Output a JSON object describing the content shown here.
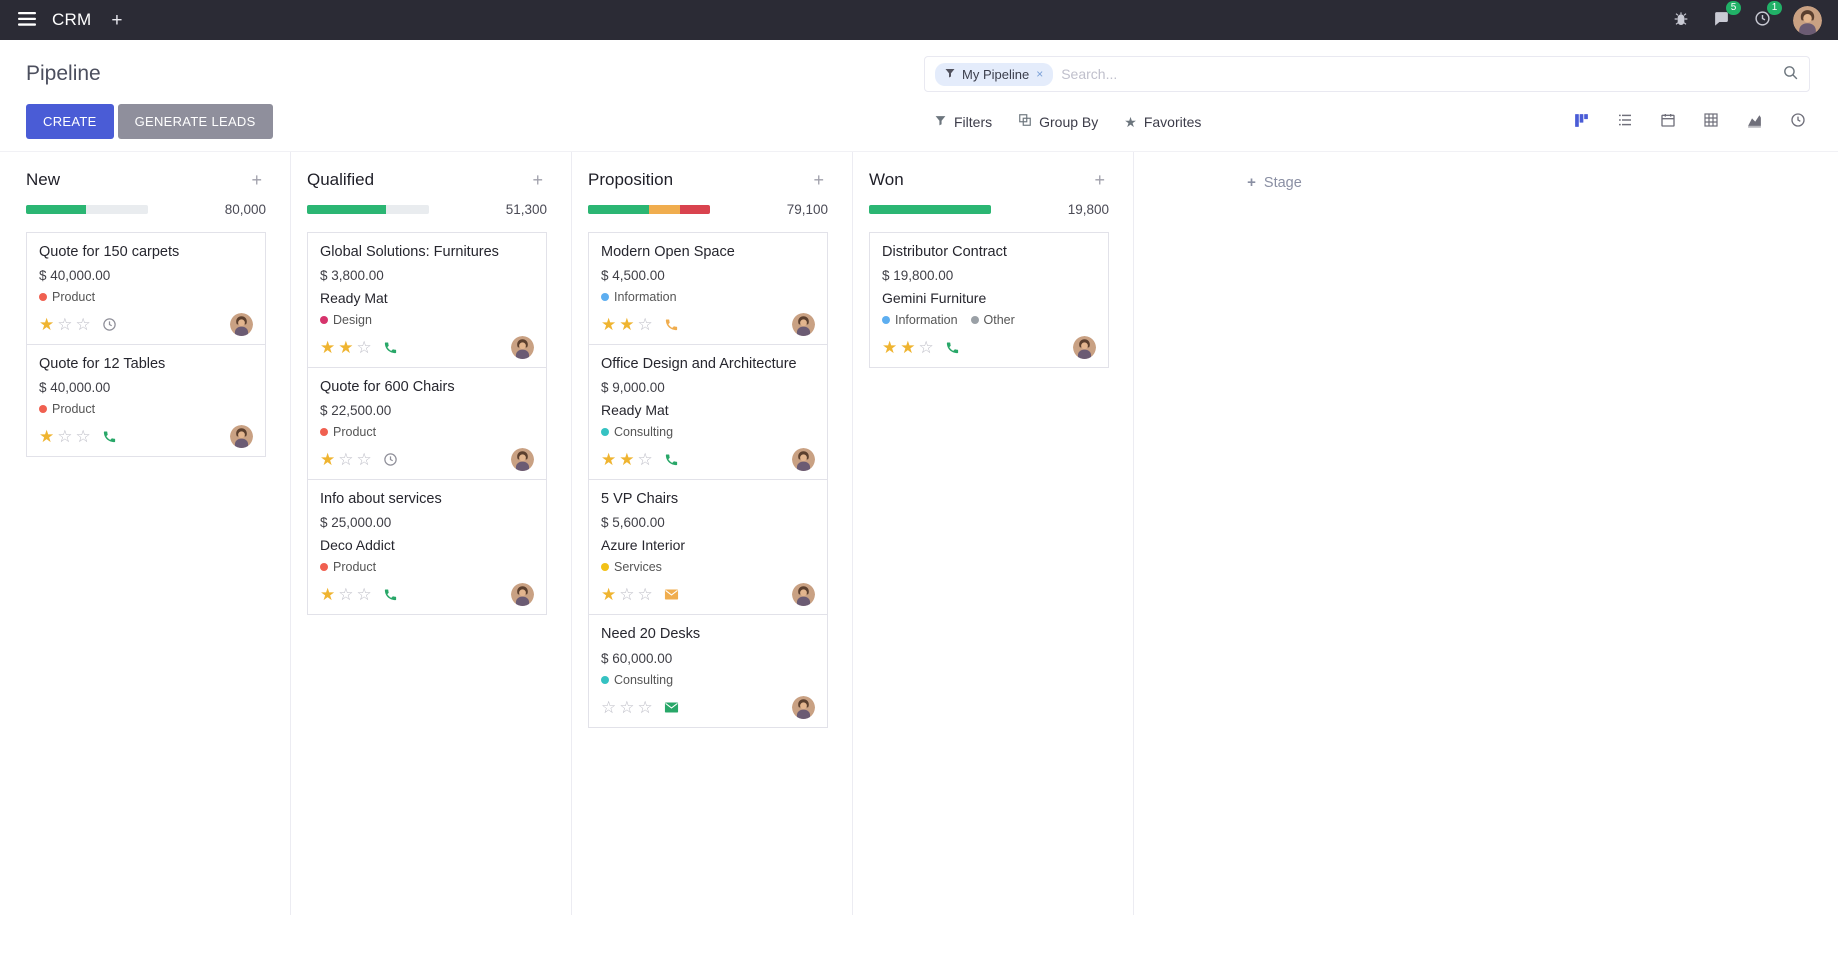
{
  "navbar": {
    "app_name": "CRM",
    "messages_badge": "5",
    "activities_badge": "1"
  },
  "control_panel": {
    "title": "Pipeline",
    "buttons": {
      "create": "CREATE",
      "generate_leads": "GENERATE LEADS"
    },
    "search": {
      "facet_label": "My Pipeline",
      "remove_facet": "×",
      "placeholder": "Search..."
    },
    "filter_buttons": {
      "filters": "Filters",
      "group_by": "Group By",
      "favorites": "Favorites"
    }
  },
  "colors": {
    "accent": "#4a5cd6",
    "success": "#2bb673",
    "warning": "#f0ad4e",
    "danger": "#d9434e",
    "star_gold": "#efb430",
    "badge_green": "#21b167"
  },
  "icons": {
    "activity_clock": "clock-face",
    "activity_phone": "phone-receiver",
    "activity_envelope": "mail-envelope"
  },
  "kanban": {
    "add_stage_label": "Stage",
    "columns": [
      {
        "name": "New",
        "total": "80,000",
        "progress": [
          {
            "color": "#2bb673",
            "pct": 49
          }
        ],
        "cards": [
          {
            "title": "Quote for 150 carpets",
            "amount": "$ 40,000.00",
            "company": "",
            "tags": [
              {
                "label": "Product",
                "color": "#f06050"
              }
            ],
            "stars": 1,
            "activity": {
              "icon": "clock",
              "color": "#8f8f99"
            }
          },
          {
            "title": "Quote for 12 Tables",
            "amount": "$ 40,000.00",
            "company": "",
            "tags": [
              {
                "label": "Product",
                "color": "#f06050"
              }
            ],
            "stars": 1,
            "activity": {
              "icon": "phone",
              "color": "#28a768"
            }
          }
        ]
      },
      {
        "name": "Qualified",
        "total": "51,300",
        "progress": [
          {
            "color": "#2bb673",
            "pct": 65
          }
        ],
        "cards": [
          {
            "title": "Global Solutions: Furnitures",
            "amount": "$ 3,800.00",
            "company": "Ready Mat",
            "tags": [
              {
                "label": "Design",
                "color": "#d6336c"
              }
            ],
            "stars": 2,
            "activity": {
              "icon": "phone",
              "color": "#28a768"
            }
          },
          {
            "title": "Quote for 600 Chairs",
            "amount": "$ 22,500.00",
            "company": "",
            "tags": [
              {
                "label": "Product",
                "color": "#f06050"
              }
            ],
            "stars": 1,
            "activity": {
              "icon": "clock",
              "color": "#8f8f99"
            }
          },
          {
            "title": "Info about services",
            "amount": "$ 25,000.00",
            "company": "Deco Addict",
            "tags": [
              {
                "label": "Product",
                "color": "#f06050"
              }
            ],
            "stars": 1,
            "activity": {
              "icon": "phone",
              "color": "#28a768"
            }
          }
        ]
      },
      {
        "name": "Proposition",
        "total": "79,100",
        "progress": [
          {
            "color": "#2bb673",
            "pct": 50
          },
          {
            "color": "#f0ad4e",
            "pct": 25
          },
          {
            "color": "#d9434e",
            "pct": 25
          }
        ],
        "cards": [
          {
            "title": "Modern Open Space",
            "amount": "$ 4,500.00",
            "company": "",
            "tags": [
              {
                "label": "Information",
                "color": "#5daef0"
              }
            ],
            "stars": 2,
            "activity": {
              "icon": "phone",
              "color": "#f0ad4e"
            }
          },
          {
            "title": "Office Design and Architecture",
            "amount": "$ 9,000.00",
            "company": "Ready Mat",
            "tags": [
              {
                "label": "Consulting",
                "color": "#35c2c2"
              }
            ],
            "stars": 2,
            "activity": {
              "icon": "phone",
              "color": "#28a768"
            }
          },
          {
            "title": "5 VP Chairs",
            "amount": "$ 5,600.00",
            "company": "Azure Interior",
            "tags": [
              {
                "label": "Services",
                "color": "#f2c117"
              }
            ],
            "stars": 1,
            "activity": {
              "icon": "envelope",
              "color": "#f0ad4e"
            }
          },
          {
            "title": "Need 20 Desks",
            "amount": "$ 60,000.00",
            "company": "",
            "tags": [
              {
                "label": "Consulting",
                "color": "#35c2c2"
              }
            ],
            "stars": 0,
            "activity": {
              "icon": "envelope",
              "color": "#28a768"
            }
          }
        ]
      },
      {
        "name": "Won",
        "total": "19,800",
        "progress": [
          {
            "color": "#2bb673",
            "pct": 100
          }
        ],
        "cards": [
          {
            "title": "Distributor Contract",
            "amount": "$ 19,800.00",
            "company": "Gemini Furniture",
            "tags": [
              {
                "label": "Information",
                "color": "#5daef0"
              },
              {
                "label": "Other",
                "color": "#9aa0a6"
              }
            ],
            "stars": 2,
            "activity": {
              "icon": "phone",
              "color": "#28a768"
            }
          }
        ]
      }
    ]
  }
}
